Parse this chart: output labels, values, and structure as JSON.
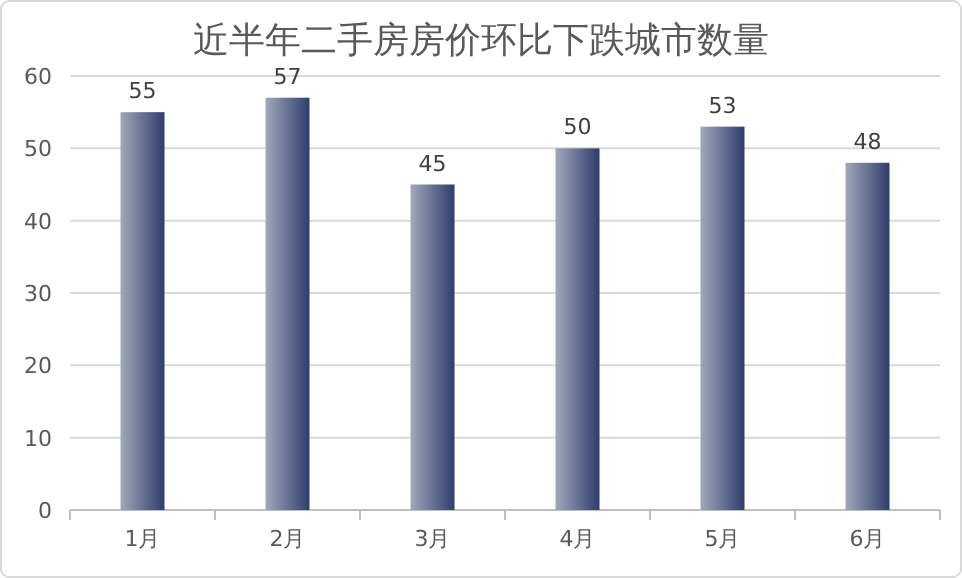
{
  "chart_data": {
    "type": "bar",
    "title": "近半年二手房房价环比下跌城市数量",
    "categories": [
      "1月",
      "2月",
      "3月",
      "4月",
      "5月",
      "6月"
    ],
    "values": [
      55,
      57,
      45,
      50,
      53,
      48
    ],
    "color": "#2e3d6b",
    "ylim": [
      0,
      60
    ],
    "yticks": [
      0,
      10,
      20,
      30,
      40,
      50,
      60
    ],
    "grid": "y",
    "data_labels": true
  }
}
